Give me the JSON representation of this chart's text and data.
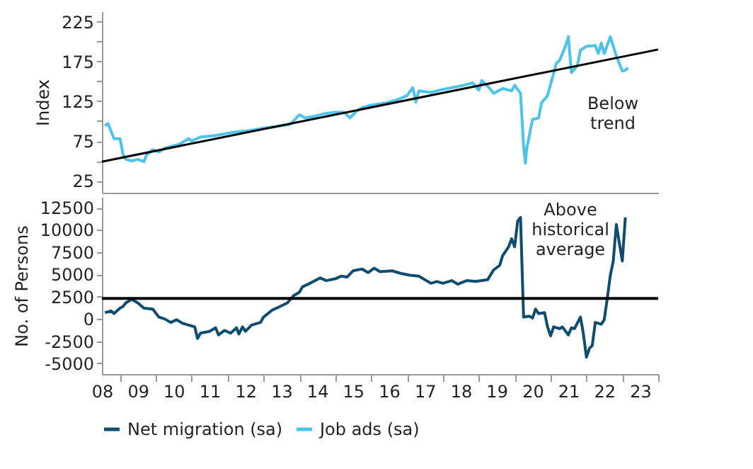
{
  "chart_data": [
    {
      "type": "line",
      "ylabel": "Index",
      "annotations": [
        "Below trend"
      ],
      "xlim": [
        "2008-07",
        "2024-01"
      ],
      "ylim": [
        10,
        238
      ],
      "tick_labels": "y",
      "legend": "bottom",
      "marker": "none",
      "line_style": "solid",
      "yticks": [
        25,
        {
          "value": 50,
          "label": null
        },
        75,
        {
          "value": 100,
          "label": null
        },
        125,
        {
          "value": 150,
          "label": null
        },
        175,
        {
          "value": 200,
          "label": null
        },
        225
      ],
      "series": [
        {
          "name": "Job ads (sa)",
          "color": "#4cc3ea",
          "x": [
            "2008-08",
            "2008-09",
            "2008-11",
            "2009-01",
            "2009-02",
            "2009-03",
            "2009-05",
            "2009-07",
            "2009-09",
            "2009-10",
            "2009-12",
            "2010-02",
            "2010-04",
            "2010-06",
            "2010-09",
            "2010-12",
            "2011-01",
            "2011-04",
            "2011-09",
            "2011-12",
            "2012-03",
            "2012-08",
            "2013-01",
            "2013-05",
            "2013-10",
            "2014-01",
            "2014-03",
            "2014-06",
            "2014-09",
            "2015-01",
            "2015-04",
            "2015-06",
            "2015-08",
            "2015-10",
            "2016-01",
            "2016-06",
            "2016-09",
            "2017-01",
            "2017-03",
            "2017-04",
            "2017-05",
            "2017-09",
            "2017-12",
            "2018-04",
            "2018-08",
            "2018-11",
            "2019-01",
            "2019-02",
            "2019-04",
            "2019-06",
            "2019-09",
            "2019-12",
            "2020-01",
            "2020-03",
            "2020-04-01",
            "2020-04-20",
            "2020-05",
            "2020-07",
            "2020-09",
            "2020-10",
            "2020-12",
            "2021-01",
            "2021-03",
            "2021-04",
            "2021-06",
            "2021-07",
            "2021-08",
            "2021-10",
            "2021-11",
            "2022-01",
            "2022-04",
            "2022-05",
            "2022-06",
            "2022-07",
            "2022-09",
            "2022-11",
            "2023-01",
            "2023-02",
            "2023-03"
          ],
          "values": [
            94,
            97,
            78,
            78,
            58,
            52,
            50,
            52,
            49,
            58,
            64,
            61,
            66,
            68,
            71,
            78,
            75,
            80,
            82,
            84,
            86,
            88,
            91,
            93,
            96,
            108,
            104,
            106,
            109,
            111,
            111,
            104,
            112,
            117,
            120,
            123,
            126,
            132,
            142,
            124,
            138,
            136,
            139,
            142,
            145,
            148,
            139,
            151,
            144,
            135,
            141,
            138,
            145,
            135,
            69,
            47,
            64,
            102,
            104,
            123,
            132,
            146,
            173,
            176,
            194,
            206,
            161,
            170,
            189,
            194,
            195,
            185,
            198,
            185,
            206,
            182,
            163,
            164,
            167
          ]
        },
        {
          "type": "line",
          "color": "#000000",
          "x": [
            "2008-07",
            "2024-01"
          ],
          "values": [
            49,
            190
          ]
        }
      ]
    },
    {
      "type": "line",
      "ylabel": "No. of Persons",
      "annotations": [
        "Above historical average"
      ],
      "xlim": [
        "2008-07",
        "2024-01"
      ],
      "ylim": [
        -6200,
        13700
      ],
      "legend": "bottom",
      "marker": "none",
      "line_style": "solid",
      "xticks": [
        {
          "value": "2008-07",
          "label": "08"
        },
        {
          "value": "2009-01",
          "label": null
        },
        {
          "value": "2009-07",
          "label": "09"
        },
        {
          "value": "2010-01",
          "label": null
        },
        {
          "value": "2010-07",
          "label": "10"
        },
        {
          "value": "2011-01",
          "label": null
        },
        {
          "value": "2011-07",
          "label": "11"
        },
        {
          "value": "2012-01",
          "label": null
        },
        {
          "value": "2012-07",
          "label": "12"
        },
        {
          "value": "2013-01",
          "label": null
        },
        {
          "value": "2013-07",
          "label": "13"
        },
        {
          "value": "2014-01",
          "label": null
        },
        {
          "value": "2014-07",
          "label": "14"
        },
        {
          "value": "2015-01",
          "label": null
        },
        {
          "value": "2015-07",
          "label": "15"
        },
        {
          "value": "2016-01",
          "label": null
        },
        {
          "value": "2016-07",
          "label": "16"
        },
        {
          "value": "2017-01",
          "label": null
        },
        {
          "value": "2017-07",
          "label": "17"
        },
        {
          "value": "2018-01",
          "label": null
        },
        {
          "value": "2018-07",
          "label": "18"
        },
        {
          "value": "2019-01",
          "label": null
        },
        {
          "value": "2019-07",
          "label": "19"
        },
        {
          "value": "2020-01",
          "label": null
        },
        {
          "value": "2020-07",
          "label": "20"
        },
        {
          "value": "2021-01",
          "label": null
        },
        {
          "value": "2021-07",
          "label": "21"
        },
        {
          "value": "2022-01",
          "label": null
        },
        {
          "value": "2022-07",
          "label": "22"
        },
        {
          "value": "2023-01",
          "label": null
        },
        {
          "value": "2023-07",
          "label": "23"
        },
        {
          "value": "2024-01",
          "label": null
        }
      ],
      "yticks": [
        -5000,
        -2500,
        0,
        2500,
        5000,
        7500,
        10000,
        12500
      ],
      "ref_lines": [
        {
          "axis": "y",
          "value": 2300,
          "color": "#000000"
        }
      ],
      "series": [
        {
          "name": "Net migration (sa)",
          "color": "#0f4c72",
          "x": [
            "2008-08",
            "2008-10",
            "2008-11",
            "2009-01",
            "2009-02",
            "2009-03",
            "2009-04",
            "2009-05",
            "2009-07",
            "2009-09",
            "2009-12",
            "2010-02",
            "2010-04",
            "2010-06",
            "2010-08",
            "2010-10",
            "2011-01",
            "2011-02",
            "2011-03",
            "2011-04",
            "2011-07",
            "2011-09",
            "2011-10",
            "2011-12",
            "2012-02",
            "2012-04-01",
            "2012-04-25",
            "2012-06",
            "2012-07",
            "2012-09",
            "2012-12",
            "2013-01",
            "2013-04",
            "2013-06",
            "2013-09",
            "2013-11",
            "2014-01",
            "2014-02",
            "2014-04",
            "2014-08",
            "2014-10",
            "2015-01",
            "2015-03",
            "2015-05",
            "2015-07",
            "2015-10",
            "2015-12",
            "2016-02",
            "2016-04",
            "2016-08",
            "2016-11",
            "2017-02",
            "2017-05",
            "2017-09",
            "2017-11",
            "2018-01",
            "2018-04",
            "2018-06",
            "2018-09",
            "2018-12",
            "2019-02",
            "2019-04",
            "2019-06",
            "2019-08",
            "2019-09",
            "2019-11",
            "2019-12",
            "2020-01",
            "2020-02",
            "2020-03",
            "2020-04",
            "2020-06",
            "2020-07",
            "2020-08",
            "2020-09",
            "2020-11",
            "2020-12",
            "2021-01",
            "2021-02",
            "2021-04",
            "2021-05",
            "2021-07",
            "2021-08",
            "2021-09",
            "2021-11",
            "2021-12",
            "2022-01",
            "2022-02",
            "2022-03",
            "2022-04",
            "2022-06",
            "2022-07",
            "2022-08",
            "2022-09",
            "2022-10",
            "2022-11",
            "2023-01",
            "2023-02"
          ],
          "values": [
            700,
            900,
            600,
            1200,
            1400,
            1800,
            2000,
            2200,
            1800,
            1200,
            1100,
            200,
            0,
            -400,
            -100,
            -500,
            -800,
            -900,
            -2200,
            -1600,
            -1400,
            -1000,
            -1800,
            -1300,
            -1600,
            -1000,
            -1700,
            -900,
            -1400,
            -700,
            -400,
            200,
            1000,
            1300,
            1800,
            2600,
            3000,
            3600,
            3900,
            4600,
            4300,
            4500,
            4800,
            4700,
            5400,
            5600,
            5200,
            5700,
            5300,
            5400,
            5100,
            4900,
            4800,
            4000,
            4200,
            4000,
            4300,
            3900,
            4300,
            4200,
            4300,
            4400,
            5500,
            6000,
            7100,
            8100,
            9000,
            8100,
            11000,
            11400,
            200,
            300,
            100,
            1100,
            600,
            700,
            -900,
            -1900,
            -900,
            -1100,
            -900,
            -1800,
            -1000,
            -1100,
            200,
            -1700,
            -4300,
            -3300,
            -3000,
            -400,
            -600,
            -100,
            2300,
            4900,
            6500,
            10600,
            6500,
            11400
          ]
        }
      ]
    }
  ]
}
